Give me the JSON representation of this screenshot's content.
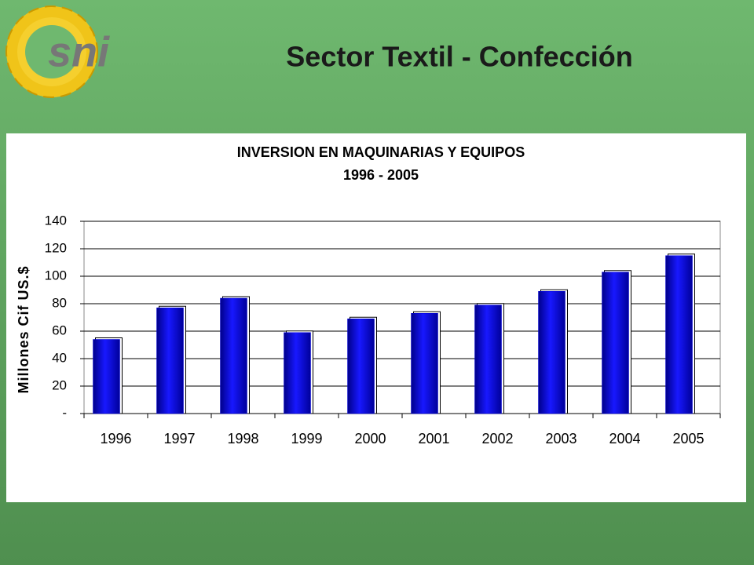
{
  "logo": "sni",
  "slide_title": "Sector Textil - Confección",
  "chart_data": {
    "type": "bar",
    "title": "INVERSION EN MAQUINARIAS Y EQUIPOS",
    "subtitle": "1996 - 2005",
    "y_label": "Millones Cif US.$",
    "categories": [
      "1996",
      "1997",
      "1998",
      "1999",
      "2000",
      "2001",
      "2002",
      "2003",
      "2004",
      "2005"
    ],
    "values": [
      54,
      77,
      84,
      59,
      69,
      73,
      79,
      89,
      103,
      115
    ],
    "color": "#0000e0",
    "ylim": [
      0,
      140
    ],
    "yticks": [
      {
        "value": 0,
        "label": "-"
      },
      20,
      40,
      60,
      80,
      100,
      120,
      140
    ],
    "grid": true
  }
}
